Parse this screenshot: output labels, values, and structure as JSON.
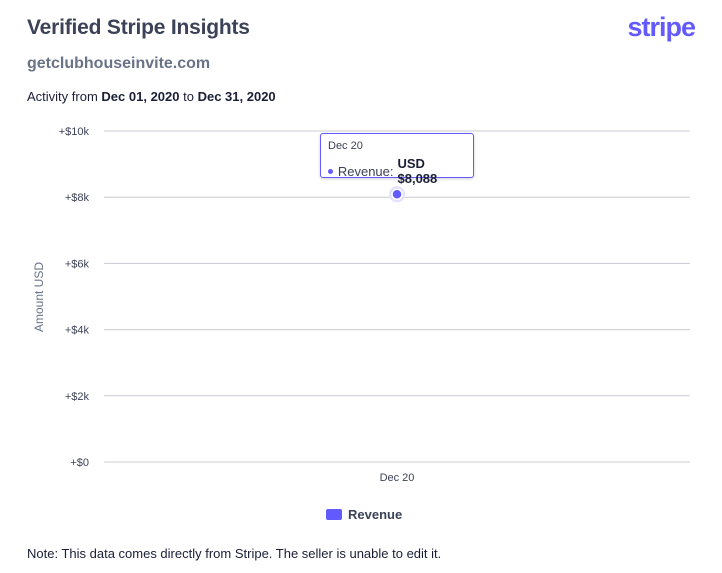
{
  "header": {
    "title": "Verified Stripe Insights",
    "brand": "stripe",
    "site": "getclubhouseinvite.com",
    "activity_prefix": "Activity from",
    "date_from": "Dec 01, 2020",
    "activity_joiner": "to",
    "date_to": "Dec 31, 2020"
  },
  "tooltip": {
    "date": "Dec 20",
    "series_label": "Revenue:",
    "value": "USD $8,088"
  },
  "legend": {
    "label": "Revenue",
    "color": "#635bff"
  },
  "note": "Note: This data comes directly from Stripe. The seller is unable to edit it.",
  "chart_data": {
    "type": "scatter",
    "categories": [
      "Dec 20"
    ],
    "series": [
      {
        "name": "Revenue",
        "values": [
          8088
        ]
      }
    ],
    "ylabel": "Amount USD",
    "xlabel": "",
    "ylim": [
      0,
      10000
    ],
    "yticks": [
      0,
      2000,
      4000,
      6000,
      8000,
      10000
    ],
    "ytick_labels": [
      "+$0",
      "+$2k",
      "+$4k",
      "+$6k",
      "+$8k",
      "+$10k"
    ],
    "grid": true,
    "legend_position": "bottom",
    "color": "#635bff"
  }
}
